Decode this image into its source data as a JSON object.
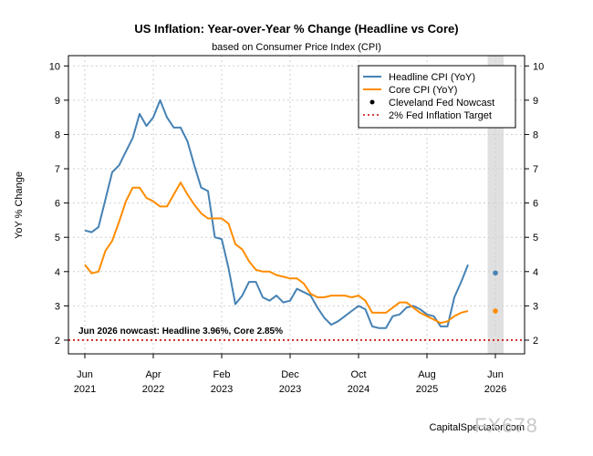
{
  "chart_data": {
    "type": "line",
    "title": "US Inflation: Year-over-Year % Change (Headline vs Core)",
    "subtitle": "based on Consumer Price Index (CPI)",
    "xlabel": "",
    "ylabel": "YoY % Change",
    "ylim": [
      1.6,
      10.3
    ],
    "xlim": [
      "2021-04",
      "2026-08"
    ],
    "grid": true,
    "legend_position": "top-right",
    "yticks": [
      2,
      3,
      4,
      5,
      6,
      7,
      8,
      9,
      10
    ],
    "ytick_labels": [
      "2",
      "3",
      "4",
      "5",
      "6",
      "7",
      "8",
      "9",
      "10"
    ],
    "xticks": [
      {
        "date": "2021-06",
        "label": "Jun",
        "year": "2021"
      },
      {
        "date": "2022-04",
        "label": "Apr",
        "year": "2022"
      },
      {
        "date": "2023-02",
        "label": "Feb",
        "year": "2023"
      },
      {
        "date": "2023-12",
        "label": "Dec",
        "year": "2023"
      },
      {
        "date": "2024-10",
        "label": "Oct",
        "year": "2024"
      },
      {
        "date": "2025-08",
        "label": "Aug",
        "year": "2025"
      },
      {
        "date": "2026-06",
        "label": "Jun",
        "year": "2026"
      }
    ],
    "shaded_period": {
      "start": "2026-05",
      "end": "2026-06"
    },
    "x": [
      "2021-06",
      "2021-07",
      "2021-08",
      "2021-09",
      "2021-10",
      "2021-11",
      "2021-12",
      "2022-01",
      "2022-02",
      "2022-03",
      "2022-04",
      "2022-05",
      "2022-06",
      "2022-07",
      "2022-08",
      "2022-09",
      "2022-10",
      "2022-11",
      "2022-12",
      "2023-01",
      "2023-02",
      "2023-03",
      "2023-04",
      "2023-05",
      "2023-06",
      "2023-07",
      "2023-08",
      "2023-09",
      "2023-10",
      "2023-11",
      "2023-12",
      "2024-01",
      "2024-02",
      "2024-03",
      "2024-04",
      "2024-05",
      "2024-06",
      "2024-07",
      "2024-08",
      "2024-09",
      "2024-10",
      "2024-11",
      "2024-12",
      "2025-01",
      "2025-02",
      "2025-03",
      "2025-04",
      "2025-05",
      "2025-06",
      "2025-07",
      "2025-08",
      "2025-09",
      "2025-10",
      "2025-11",
      "2025-12",
      "2026-01",
      "2026-02",
      "2026-03",
      "2026-04",
      "2026-05"
    ],
    "series": [
      {
        "name": "Headline CPI (YoY)",
        "color": "#4682b4",
        "values": [
          5.2,
          5.15,
          5.3,
          6.1,
          6.9,
          7.1,
          7.5,
          7.9,
          8.6,
          8.25,
          8.5,
          9.0,
          8.5,
          8.2,
          8.2,
          7.8,
          7.1,
          6.45,
          6.35,
          5.0,
          4.95,
          4.1,
          3.05,
          3.3,
          3.7,
          3.7,
          3.25,
          3.15,
          3.3,
          3.1,
          3.15,
          3.5,
          3.4,
          3.3,
          2.95,
          2.65,
          2.45,
          2.55,
          2.7,
          2.85,
          3.0,
          2.9,
          2.4,
          2.35,
          2.35,
          2.7,
          2.75,
          2.95,
          3.0,
          2.9,
          2.75,
          2.7,
          2.4,
          2.4,
          3.25,
          3.7,
          4.2,
          null,
          null,
          null
        ]
      },
      {
        "name": "Core CPI (YoY)",
        "color": "#ff8c00",
        "values": [
          4.2,
          3.95,
          4.0,
          4.6,
          4.9,
          5.45,
          6.05,
          6.45,
          6.45,
          6.15,
          6.05,
          5.9,
          5.9,
          6.25,
          6.6,
          6.25,
          5.95,
          5.7,
          5.55,
          5.55,
          5.55,
          5.4,
          4.8,
          4.65,
          4.3,
          4.05,
          4.0,
          4.0,
          3.9,
          3.85,
          3.8,
          3.8,
          3.65,
          3.35,
          3.25,
          3.25,
          3.3,
          3.3,
          3.3,
          3.25,
          3.3,
          3.15,
          2.8,
          2.8,
          2.8,
          2.95,
          3.1,
          3.1,
          2.95,
          2.8,
          2.7,
          2.6,
          2.5,
          2.55,
          2.7,
          2.8,
          2.85,
          null,
          null,
          null
        ]
      }
    ],
    "nowcast": {
      "name": "Cleveland Fed Nowcast",
      "date": "2026-06",
      "headline": 3.96,
      "core": 2.85,
      "headline_color": "#4682b4",
      "core_color": "#ff8c00"
    },
    "target": {
      "name": "2% Fed Inflation Target",
      "value": 2,
      "color": "#cc0000"
    },
    "annotation": "Jun 2026 nowcast: Headline 3.96%, Core 2.85%",
    "source": "CapitalSpectator.com",
    "watermark": "FX678"
  }
}
